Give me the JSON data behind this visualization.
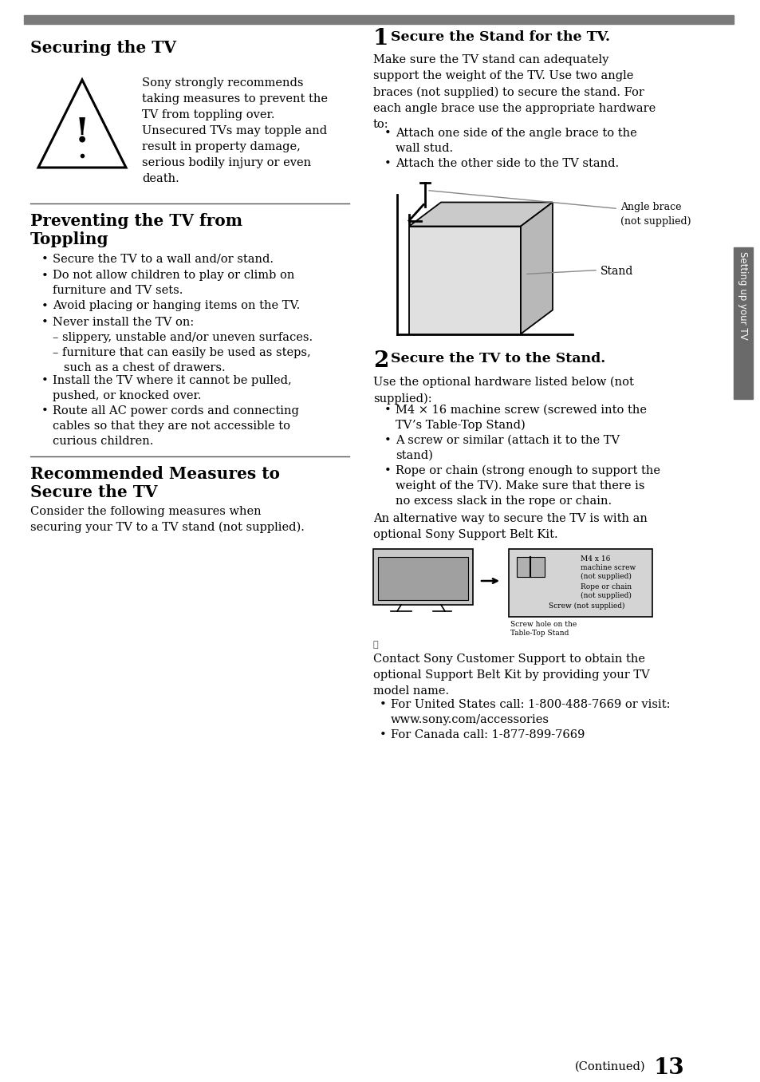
{
  "bg_color": "#ffffff",
  "page_num": "13",
  "continued_text": "(Continued)",
  "top_bar_color": "#7a7a7a",
  "section_line_color": "#555555",
  "sidebar_color": "#6a6a6a",
  "sidebar_text": "Setting up your TV",
  "left_col": {
    "sec1_title": "Securing the TV",
    "sec1_warning": "Sony strongly recommends\ntaking measures to prevent the\nTV from toppling over.\nUnsecured TVs may topple and\nresult in property damage,\nserious bodily injury or even\ndeath.",
    "sec2_title": "Preventing the TV from\nToppling",
    "sec2_bullets": [
      "Secure the TV to a wall and/or stand.",
      "Do not allow children to play or climb on\nfurniture and TV sets.",
      "Avoid placing or hanging items on the TV.",
      "Never install the TV on:\n– slippery, unstable and/or uneven surfaces.\n– furniture that can easily be used as steps,\n   such as a chest of drawers.",
      "Install the TV where it cannot be pulled,\npushed, or knocked over.",
      "Route all AC power cords and connecting\ncables so that they are not accessible to\ncurious children."
    ],
    "sec3_title": "Recommended Measures to\nSecure the TV",
    "sec3_body": "Consider the following measures when\nsecuring your TV to a TV stand (not supplied)."
  },
  "right_col": {
    "step1_num": "1",
    "step1_title": "  Secure the Stand for the TV.",
    "step1_body": "Make sure the TV stand can adequately\nsupport the weight of the TV. Use two angle\nbraces (not supplied) to secure the stand. For\neach angle brace use the appropriate hardware\nto:",
    "step1_bullets": [
      "Attach one side of the angle brace to the\nwall stud.",
      "Attach the other side to the TV stand."
    ],
    "angle_brace_label": "Angle brace\n(not supplied)",
    "stand_label": "Stand",
    "step2_num": "2",
    "step2_title": "  Secure the TV to the Stand.",
    "step2_body": "Use the optional hardware listed below (not\nsupplied):",
    "step2_bullets": [
      "M4 × 16 machine screw (screwed into the\nTV’s Table-Top Stand)",
      "A screw or similar (attach it to the TV\nstand)",
      "Rope or chain (strong enough to support the\nweight of the TV). Make sure that there is\nno excess slack in the rope or chain."
    ],
    "step2_footer": "An alternative way to secure the TV is with an\noptional Sony Support Belt Kit.",
    "note_icon": "ℹ",
    "note_body": "Contact Sony Customer Support to obtain the\noptional Support Belt Kit by providing your TV\nmodel name.",
    "note_bullets": [
      "For United States call: 1-800-488-7669 or visit:\nwww.sony.com/accessories",
      "For Canada call: 1-877-899-7669"
    ],
    "diag2_labels": {
      "m4_screw": "M4 x 16\nmachine screw\n(not supplied)",
      "rope": "Rope or chain\n(not supplied)",
      "screw_hole": "Screw hole on the\nTable-Top Stand",
      "screw": "Screw (not supplied)"
    }
  }
}
